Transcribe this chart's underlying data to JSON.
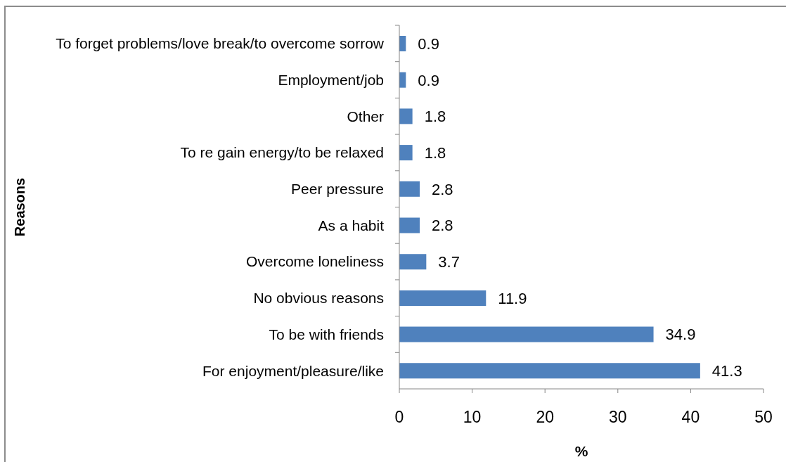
{
  "chart_data": {
    "type": "bar",
    "orientation": "horizontal",
    "xlabel": "%",
    "ylabel": "Reasons",
    "categories": [
      "To forget problems/love break/to overcome sorrow",
      "Employment/job",
      "Other",
      "To re gain energy/to be relaxed",
      "Peer pressure",
      "As a habit",
      "Overcome loneliness",
      "No obvious reasons",
      "To be with friends",
      "For enjoyment/pleasure/like"
    ],
    "values": [
      0.9,
      0.9,
      1.8,
      1.8,
      2.8,
      2.8,
      3.7,
      11.9,
      34.9,
      41.3
    ],
    "color": "#4f81bd",
    "xlim": [
      0,
      50
    ],
    "xticks": [
      0,
      10,
      20,
      30,
      40,
      50
    ],
    "data_labels": true
  }
}
